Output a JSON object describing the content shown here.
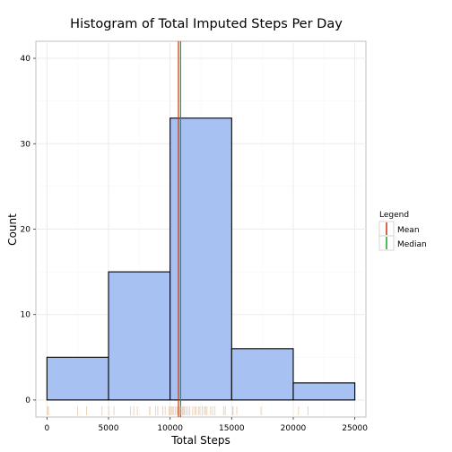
{
  "chart_data": {
    "type": "histogram",
    "title": "Histogram of Total Imputed Steps Per Day",
    "xlabel": "Total Steps",
    "ylabel": "Count",
    "xlim": [
      -900,
      25900
    ],
    "ylim": [
      -2,
      42
    ],
    "x_ticks": [
      0,
      5000,
      10000,
      15000,
      20000,
      25000
    ],
    "x_tick_labels": [
      "0",
      "5000",
      "10000",
      "15000",
      "20000",
      "25000"
    ],
    "y_ticks": [
      0,
      10,
      20,
      30,
      40
    ],
    "y_tick_labels": [
      "0",
      "10",
      "20",
      "30",
      "40"
    ],
    "grid": true,
    "bins": [
      {
        "x0": 0,
        "x1": 5000,
        "count": 5
      },
      {
        "x0": 5000,
        "x1": 10000,
        "count": 15
      },
      {
        "x0": 10000,
        "x1": 15000,
        "count": 33
      },
      {
        "x0": 15000,
        "x1": 20000,
        "count": 6
      },
      {
        "x0": 20000,
        "x1": 25000,
        "count": 2
      }
    ],
    "bar_fill": "#a8c1f3",
    "bar_stroke": "#000000",
    "reference_lines": [
      {
        "name": "Mean",
        "value": 10766,
        "color": "#cc3311"
      },
      {
        "name": "Median",
        "value": 10766,
        "color": "#1ea01e"
      }
    ],
    "rug": {
      "color": "#e8c9a6",
      "values": [
        41,
        126,
        2492,
        3219,
        4472,
        5018,
        5441,
        6778,
        7047,
        7336,
        8334,
        8355,
        8821,
        9000,
        9400,
        9600,
        9900,
        10000,
        10100,
        10183,
        10300,
        10439,
        10571,
        10600,
        10765,
        10800,
        10900,
        11015,
        11100,
        11162,
        11300,
        11458,
        11600,
        11834,
        12000,
        12116,
        12300,
        12426,
        12608,
        12787,
        12883,
        13000,
        13294,
        13452,
        13646,
        14339,
        14478,
        15084,
        15098,
        15110,
        15414,
        17382,
        20427,
        21194
      ]
    },
    "legend": {
      "title": "Legend",
      "position": "right",
      "entries": [
        "Mean",
        "Median"
      ]
    }
  }
}
